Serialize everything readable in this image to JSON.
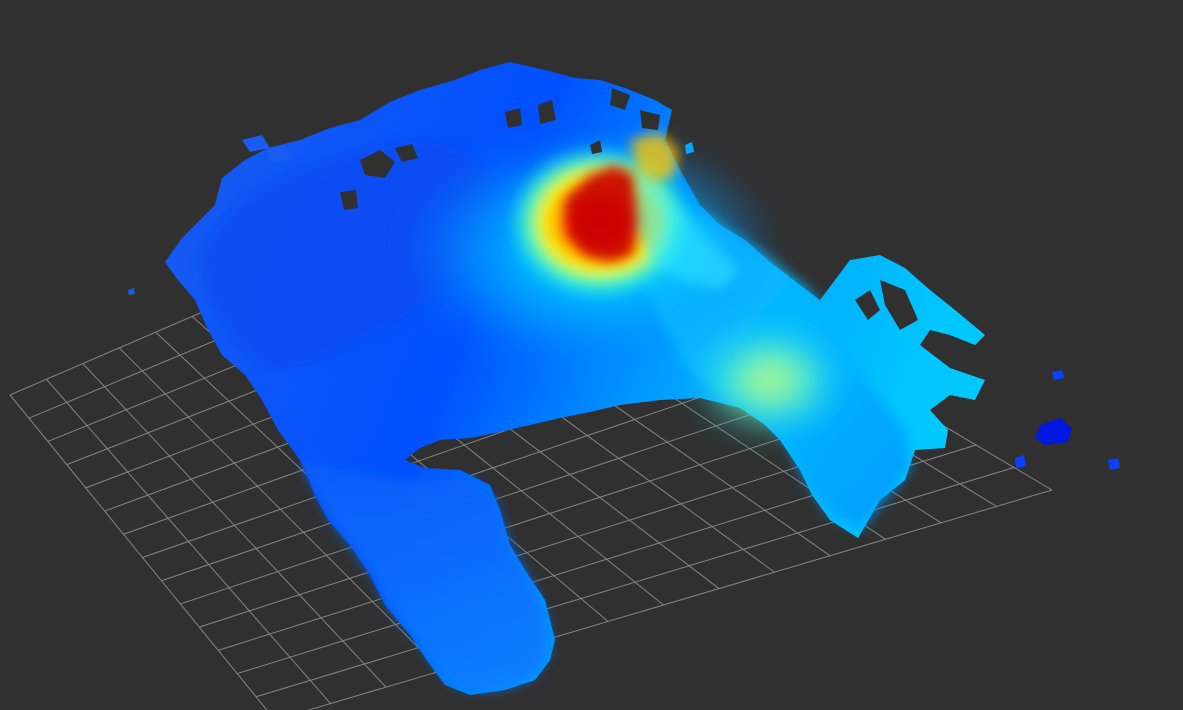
{
  "viewer": {
    "background_color": "#303030",
    "grid_color": "#a0a0a0",
    "colormap": "jet",
    "colormap_stops": [
      "#0010ff",
      "#0060ff",
      "#00a8ff",
      "#00e8ff",
      "#a0ff60",
      "#ffe800",
      "#ff7800",
      "#d00000"
    ]
  }
}
